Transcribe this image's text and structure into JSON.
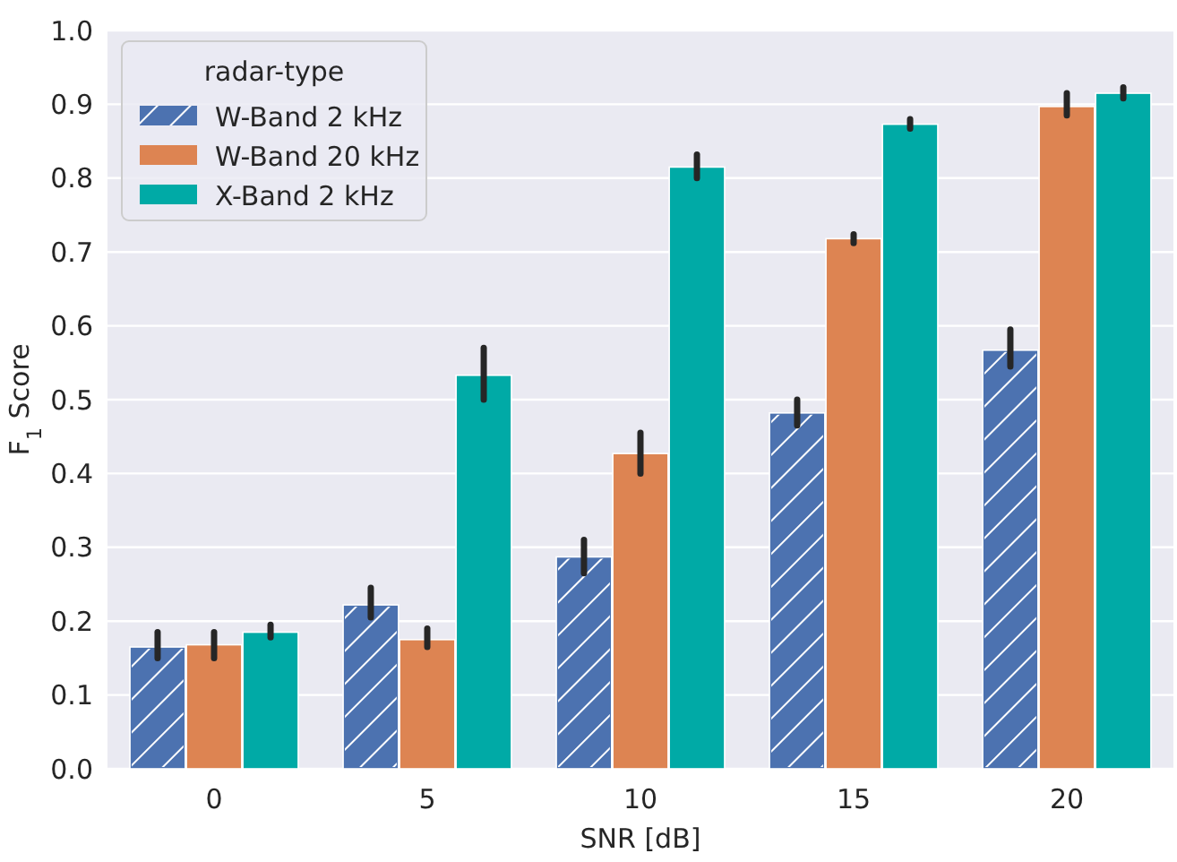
{
  "chart_data": {
    "type": "bar",
    "xlabel": "SNR [dB]",
    "ylabel": "F$_{1}$ Score",
    "legend_title": "radar-type",
    "categories": [
      "0",
      "5",
      "10",
      "15",
      "20"
    ],
    "series": [
      {
        "name": "W-Band 2 kHz",
        "color": "#4c72b0",
        "values": [
          0.165,
          0.222,
          0.287,
          0.482,
          0.567
        ],
        "errors": [
          [
            0.15,
            0.185
          ],
          [
            0.205,
            0.245
          ],
          [
            0.265,
            0.31
          ],
          [
            0.465,
            0.5
          ],
          [
            0.545,
            0.595
          ]
        ]
      },
      {
        "name": "W-Band 20 kHz",
        "color": "#dd8452",
        "values": [
          0.168,
          0.175,
          0.427,
          0.718,
          0.897
        ],
        "errors": [
          [
            0.15,
            0.185
          ],
          [
            0.165,
            0.19
          ],
          [
            0.4,
            0.455
          ],
          [
            0.712,
            0.724
          ],
          [
            0.885,
            0.915
          ]
        ]
      },
      {
        "name": "X-Band 2 kHz",
        "color": "#00aaa6",
        "values": [
          0.185,
          0.533,
          0.815,
          0.873,
          0.915
        ],
        "errors": [
          [
            0.178,
            0.195
          ],
          [
            0.5,
            0.57
          ],
          [
            0.8,
            0.832
          ],
          [
            0.867,
            0.88
          ],
          [
            0.908,
            0.923
          ]
        ]
      }
    ],
    "ylim": [
      0,
      1
    ],
    "yticks": [
      {
        "value": 0,
        "label": "0.0"
      },
      {
        "value": 0.1,
        "label": "0.1"
      },
      {
        "value": 0.2,
        "label": "0.2"
      },
      {
        "value": 0.3,
        "label": "0.3"
      },
      {
        "value": 0.4,
        "label": "0.4"
      },
      {
        "value": 0.5,
        "label": "0.5"
      },
      {
        "value": 0.6,
        "label": "0.6"
      },
      {
        "value": 0.7,
        "label": "0.7"
      },
      {
        "value": 0.8,
        "label": "0.8"
      },
      {
        "value": 0.9,
        "label": "0.9"
      },
      {
        "value": 1,
        "label": "1.0"
      }
    ],
    "grid": "y",
    "legend": "top left"
  }
}
